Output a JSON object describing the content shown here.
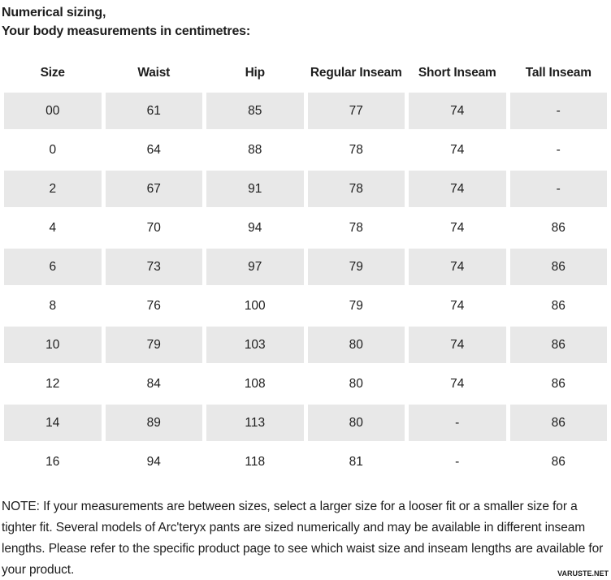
{
  "page": {
    "title_line1": "Numerical sizing,",
    "title_line2": "Your body measurements in centimetres:"
  },
  "table": {
    "columns": [
      "Size",
      "Waist",
      "Hip",
      "Regular Inseam",
      "Short Inseam",
      "Tall Inseam"
    ],
    "rows": [
      [
        "00",
        "61",
        "85",
        "77",
        "74",
        "-"
      ],
      [
        "0",
        "64",
        "88",
        "78",
        "74",
        "-"
      ],
      [
        "2",
        "67",
        "91",
        "78",
        "74",
        "-"
      ],
      [
        "4",
        "70",
        "94",
        "78",
        "74",
        "86"
      ],
      [
        "6",
        "73",
        "97",
        "79",
        "74",
        "86"
      ],
      [
        "8",
        "76",
        "100",
        "79",
        "74",
        "86"
      ],
      [
        "10",
        "79",
        "103",
        "80",
        "74",
        "86"
      ],
      [
        "12",
        "84",
        "108",
        "80",
        "74",
        "86"
      ],
      [
        "14",
        "89",
        "113",
        "80",
        "-",
        "86"
      ],
      [
        "16",
        "94",
        "118",
        "81",
        "-",
        "86"
      ]
    ],
    "stripe_color": "#e8e8e8",
    "text_color": "#1d1d1d"
  },
  "note": {
    "text": "NOTE: If your measurements are between sizes, select a larger size for a looser fit or a smaller size for a tighter fit. Several models of Arc'teryx pants are sized numerically and may be available in different inseam lengths. Please refer to the specific product page to see which waist size and inseam lengths are available for your product."
  },
  "watermark": {
    "label": "VARUSTE.NET"
  }
}
